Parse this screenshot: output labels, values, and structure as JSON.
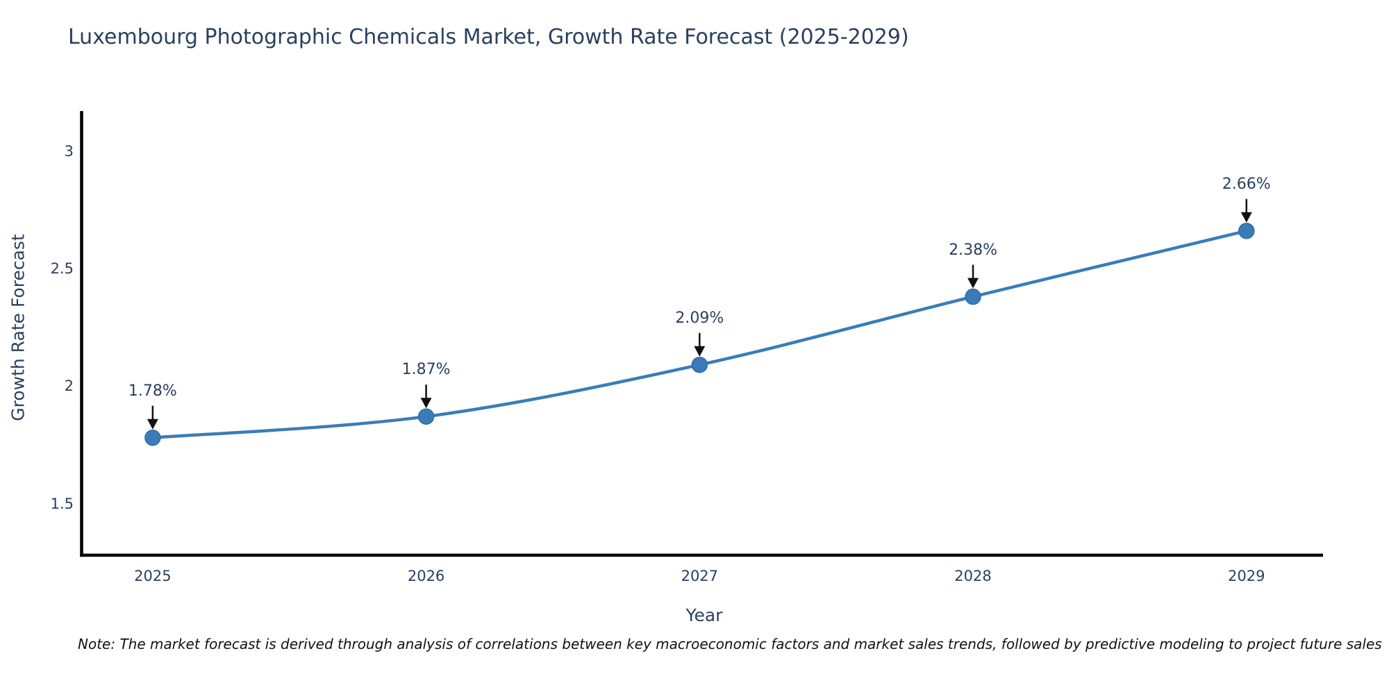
{
  "note": "Note: The market forecast is derived through analysis of correlations between key macroeconomic factors and market sales trends, followed by predictive modeling to project future sales",
  "chart_data": {
    "type": "line",
    "title": "Luxembourg Photographic Chemicals Market, Growth Rate Forecast (2025-2029)",
    "xlabel": "Year",
    "ylabel": "Growth Rate Forecast",
    "x": [
      2025,
      2026,
      2027,
      2028,
      2029
    ],
    "series": [
      {
        "name": "Growth Rate Forecast",
        "values": [
          1.78,
          1.87,
          2.09,
          2.38,
          2.66
        ],
        "point_labels": [
          "1.78%",
          "1.87%",
          "2.09%",
          "2.38%",
          "2.66%"
        ]
      }
    ],
    "xticks": [
      2025,
      2026,
      2027,
      2028,
      2029
    ],
    "yticks": [
      1.5,
      2,
      2.5,
      3
    ],
    "xlim": [
      2024.74,
      2029.28
    ],
    "ylim": [
      1.28,
      3.17
    ],
    "grid": false,
    "legend": false,
    "line_shape": "spline",
    "annotations_have_arrows": true,
    "colors": {
      "line": "#3b7cb8",
      "marker": "#3b7cb8",
      "marker_stroke": "#2f6da6",
      "axis": "#000000",
      "tick_text": "#2a3f5f",
      "annotation_text": "#2a3f5f",
      "arrow": "#111111",
      "note_text": "#111111",
      "background": "#ffffff"
    }
  }
}
